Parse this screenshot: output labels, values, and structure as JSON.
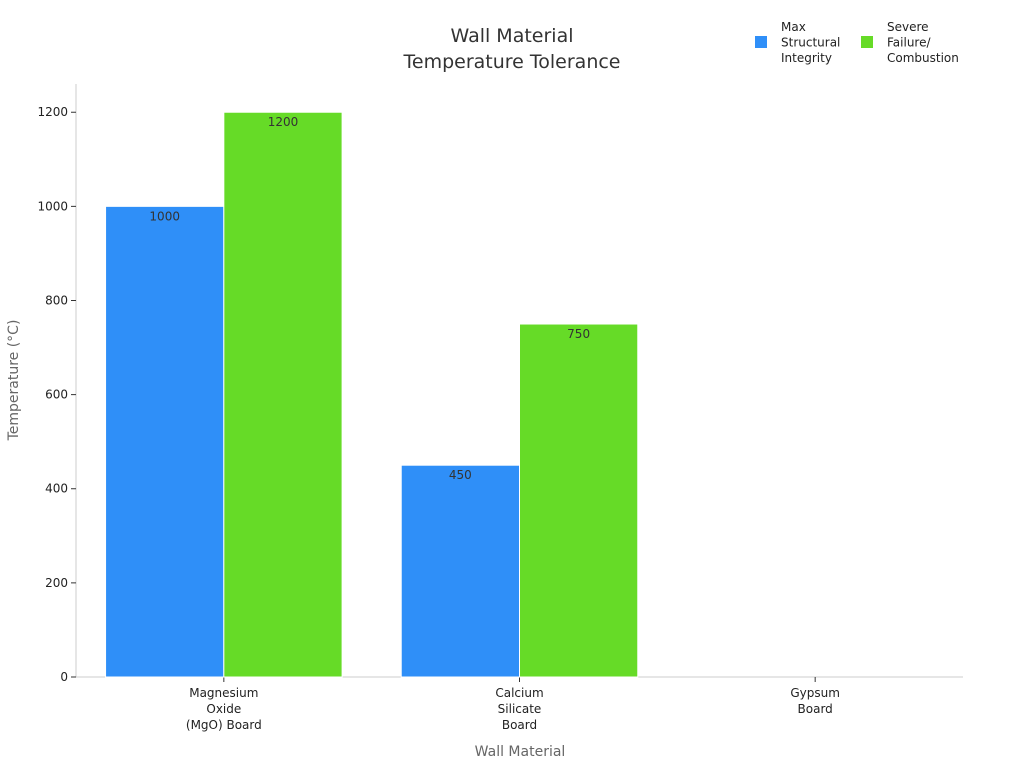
{
  "chart_data": {
    "type": "bar",
    "title": "Wall Material\nTemperature Tolerance",
    "xlabel": "Wall Material",
    "ylabel": "Temperature (°C)",
    "categories": [
      "Magnesium\nOxide\n(MgO) Board",
      "Calcium\nSilicate\nBoard",
      "Gypsum\nBoard"
    ],
    "series": [
      {
        "name": "Max\nStructural\nIntegrity",
        "color": "#2f8ff8",
        "values": [
          1000,
          450,
          null
        ]
      },
      {
        "name": "Severe\nFailure/\nCombustion",
        "color": "#66db27",
        "values": [
          1200,
          750,
          null
        ]
      }
    ],
    "ylim": [
      0,
      1260
    ],
    "yticks": [
      0,
      200,
      400,
      600,
      800,
      1000,
      1200
    ],
    "data_labels": true,
    "legend_position": "top-right",
    "grid": false
  }
}
